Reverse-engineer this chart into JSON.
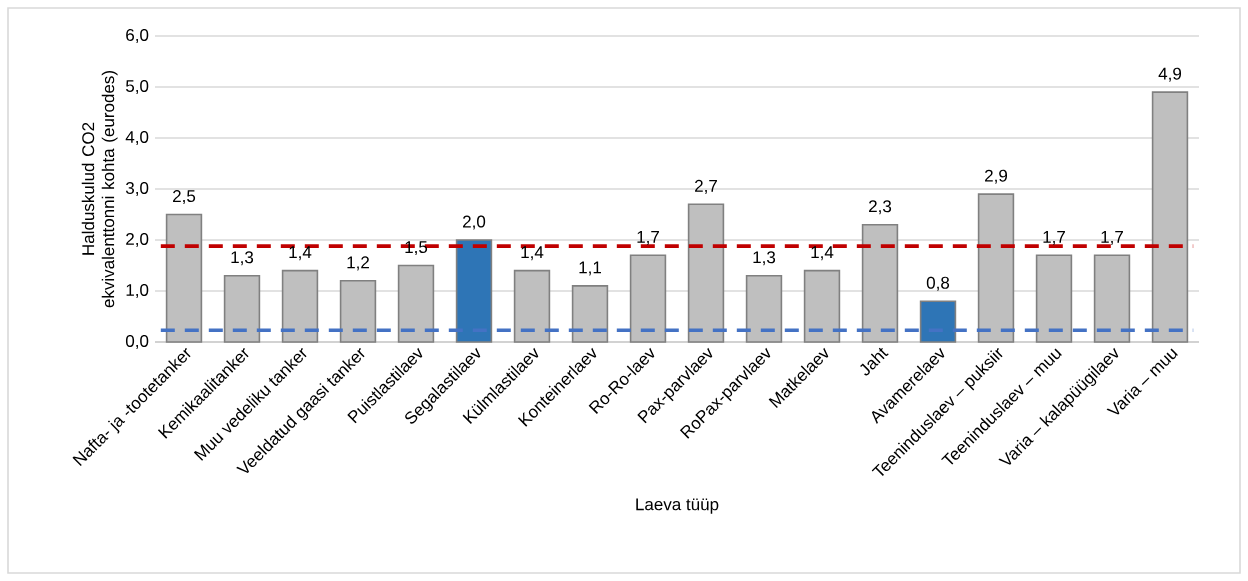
{
  "chart_data": {
    "type": "bar",
    "xlabel": "Laeva tüüp",
    "ylabel": "Halduskulud CO2 ekvivalenttonni kohta (eurodes)",
    "categories": [
      "Nafta- ja -tootetanker",
      "Kemikaalitanker",
      "Muu vedeliku tanker",
      "Veeldatud gaasi tanker",
      "Puistlastilaev",
      "Segalastilaev",
      "Külmlastilaev",
      "Konteinerlaev",
      "Ro-Ro-laev",
      "Pax-parvlaev",
      "RoPax-parvlaev",
      "Matkelaev",
      "Jaht",
      "Avamerelaev",
      "Teeninduslaev – puksiir",
      "Teeninduslaev – muu",
      "Varia – kalapüügilaev",
      "Varia – muu"
    ],
    "values": [
      2.5,
      1.3,
      1.4,
      1.2,
      1.5,
      2.0,
      1.4,
      1.1,
      1.7,
      2.7,
      1.3,
      1.4,
      2.3,
      0.8,
      2.9,
      1.7,
      1.7,
      4.9
    ],
    "value_labels": [
      "2,5",
      "1,3",
      "1,4",
      "1,2",
      "1,5",
      "2,0",
      "1,4",
      "1,1",
      "1,7",
      "2,7",
      "1,3",
      "1,4",
      "2,3",
      "0,8",
      "2,9",
      "1,7",
      "1,7",
      "4,9"
    ],
    "colors": [
      "#bfbfbf",
      "#bfbfbf",
      "#bfbfbf",
      "#bfbfbf",
      "#bfbfbf",
      "#2e75b6",
      "#bfbfbf",
      "#bfbfbf",
      "#bfbfbf",
      "#bfbfbf",
      "#bfbfbf",
      "#bfbfbf",
      "#bfbfbf",
      "#2e75b6",
      "#bfbfbf",
      "#bfbfbf",
      "#bfbfbf",
      "#bfbfbf"
    ],
    "ylim": [
      0,
      6
    ],
    "yticks": [
      {
        "value": 0,
        "label": "0,0"
      },
      {
        "value": 1,
        "label": "1,0"
      },
      {
        "value": 2,
        "label": "2,0"
      },
      {
        "value": 3,
        "label": "3,0"
      },
      {
        "value": 4,
        "label": "4,0"
      },
      {
        "value": 5,
        "label": "5,0"
      },
      {
        "value": 6,
        "label": "6,0"
      }
    ],
    "grid": "y",
    "ref_lines": [
      {
        "axis": "y",
        "value": 1.88,
        "color": "#c00000",
        "line_style": "dashed"
      },
      {
        "axis": "y",
        "value": 0.23,
        "color": "#4472c4",
        "line_style": "dashed"
      }
    ]
  }
}
